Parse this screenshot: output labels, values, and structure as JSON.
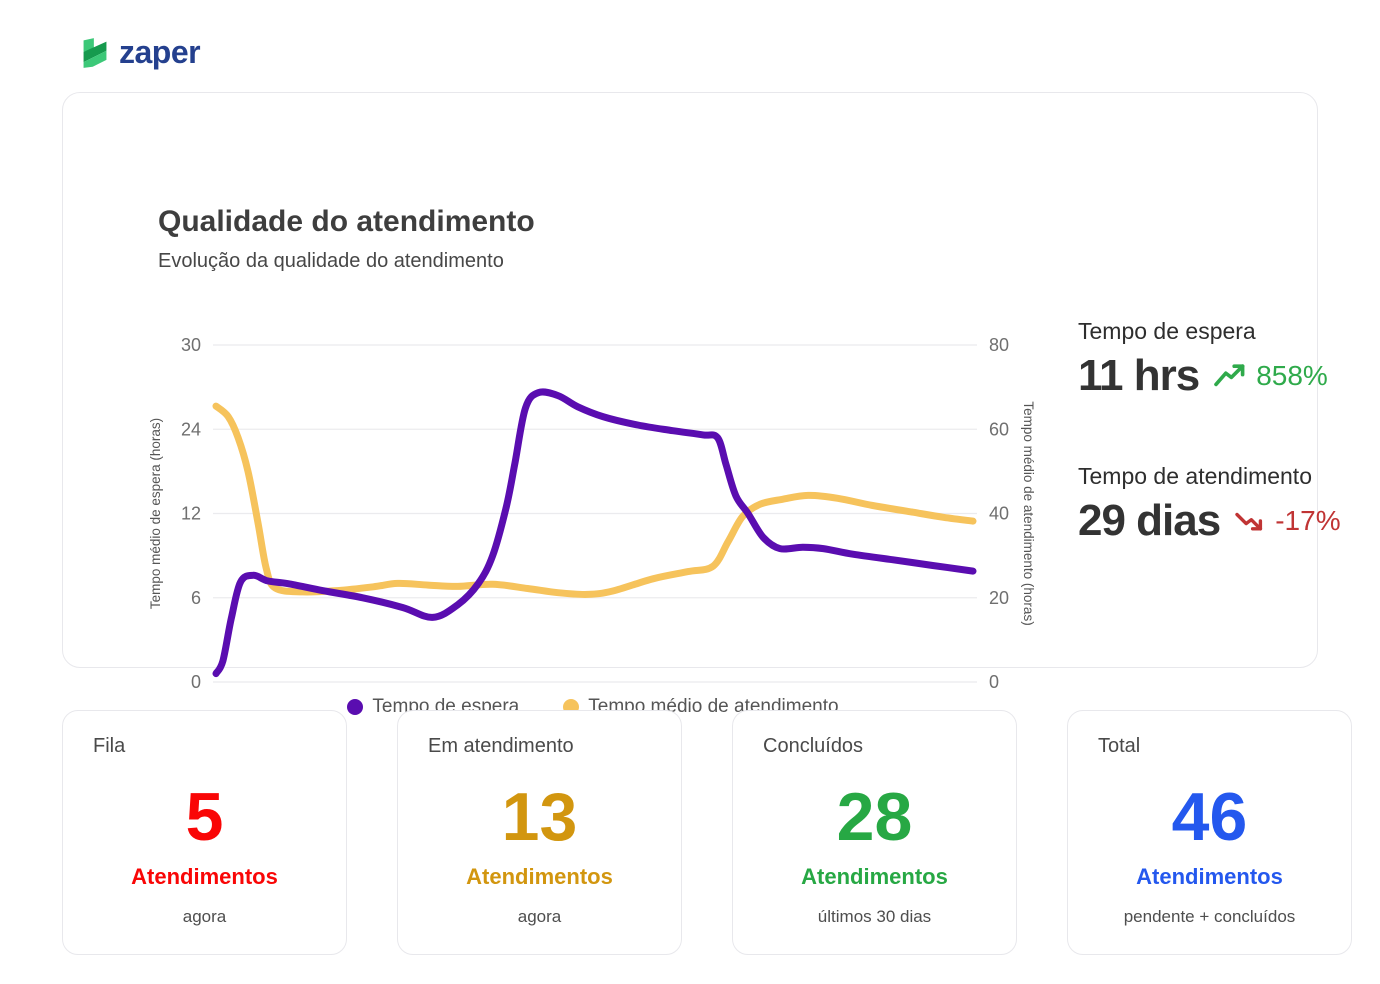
{
  "brand": {
    "name": "zaper",
    "text_color": "#24408e",
    "icon_green_dark": "#169a4e",
    "icon_green_light": "#3cc878"
  },
  "panel": {
    "title": "Qualidade do atendimento",
    "subtitle": "Evolução da qualidade do atendimento"
  },
  "chart_data": {
    "type": "line",
    "title": "Qualidade do atendimento",
    "grid": true,
    "legend_position": "bottom",
    "x_tick_labels": [],
    "left_axis": {
      "label": "Tempo médio de espera (horas)",
      "ticks": [
        0,
        6,
        12,
        24,
        30
      ]
    },
    "right_axis": {
      "label": "Tempo médio de atendimento (horas)",
      "ticks": [
        0,
        20,
        40,
        60,
        80
      ]
    },
    "series": [
      {
        "name": "Tempo de espera",
        "axis": "left",
        "color": "#5a0db0",
        "points": [
          [
            0.4,
            0.6
          ],
          [
            1.3,
            1.5
          ],
          [
            2.4,
            4.5
          ],
          [
            3.6,
            7.1
          ],
          [
            5.3,
            7.6
          ],
          [
            7.2,
            7.2
          ],
          [
            9.9,
            7.0
          ],
          [
            14.5,
            6.5
          ],
          [
            19.7,
            6.0
          ],
          [
            25.0,
            5.3
          ],
          [
            28.9,
            4.6
          ],
          [
            32.2,
            5.5
          ],
          [
            34.9,
            7.0
          ],
          [
            36.8,
            9.0
          ],
          [
            38.6,
            13.0
          ],
          [
            39.7,
            19.0
          ],
          [
            41.1,
            25.5
          ],
          [
            42.8,
            26.6
          ],
          [
            45.4,
            26.4
          ],
          [
            48.0,
            25.6
          ],
          [
            51.3,
            24.9
          ],
          [
            55.9,
            24.3
          ],
          [
            60.5,
            23.8
          ],
          [
            64.5,
            23.2
          ],
          [
            66.4,
            22.8
          ],
          [
            67.5,
            19.0
          ],
          [
            68.8,
            14.5
          ],
          [
            70.4,
            12.0
          ],
          [
            72.4,
            10.3
          ],
          [
            74.6,
            9.5
          ],
          [
            77.6,
            9.6
          ],
          [
            80.3,
            9.5
          ],
          [
            84.2,
            9.1
          ],
          [
            89.5,
            8.7
          ],
          [
            94.7,
            8.3
          ],
          [
            100,
            7.9
          ]
        ]
      },
      {
        "name": "Tempo médio de atendimento",
        "axis": "right",
        "color": "#f6c35c",
        "points": [
          [
            0.4,
            65.5
          ],
          [
            2.0,
            63
          ],
          [
            3.3,
            58
          ],
          [
            4.6,
            50
          ],
          [
            5.9,
            38
          ],
          [
            7.0,
            27
          ],
          [
            8.2,
            22.3
          ],
          [
            11.8,
            21.4
          ],
          [
            16.4,
            21.7
          ],
          [
            21.1,
            22.6
          ],
          [
            24.3,
            23.4
          ],
          [
            28.3,
            23.0
          ],
          [
            32.2,
            22.7
          ],
          [
            36.8,
            23.2
          ],
          [
            41.4,
            22.2
          ],
          [
            45.4,
            21.2
          ],
          [
            49.3,
            20.8
          ],
          [
            52.6,
            21.6
          ],
          [
            57.9,
            24.5
          ],
          [
            62.5,
            26.2
          ],
          [
            65.8,
            27.5
          ],
          [
            67.8,
            33.4
          ],
          [
            69.7,
            39.3
          ],
          [
            72.0,
            42.2
          ],
          [
            75.0,
            43.4
          ],
          [
            78.3,
            44.3
          ],
          [
            82.2,
            43.6
          ],
          [
            86.8,
            41.9
          ],
          [
            92.1,
            40.3
          ],
          [
            96.1,
            39.1
          ],
          [
            100,
            38.2
          ]
        ]
      }
    ]
  },
  "stats": [
    {
      "label": "Tempo de espera",
      "value": "11 hrs",
      "trend": "up",
      "trend_value": "858%",
      "trend_color": "#2faa4b"
    },
    {
      "label": "Tempo de atendimento",
      "value": "29 dias",
      "trend": "down",
      "trend_value": "-17%",
      "trend_color": "#c03434"
    }
  ],
  "cards": [
    {
      "title": "Fila",
      "value": "5",
      "unit": "Atendimentos",
      "caption": "agora",
      "color": "#f90606"
    },
    {
      "title": "Em atendimento",
      "value": "13",
      "unit": "Atendimentos",
      "caption": "agora",
      "color": "#d2960f"
    },
    {
      "title": "Concluídos",
      "value": "28",
      "unit": "Atendimentos",
      "caption": "últimos 30 dias",
      "color": "#27a844"
    },
    {
      "title": "Total",
      "value": "46",
      "unit": "Atendimentos",
      "caption": "pendente + concluídos",
      "color": "#2458ee"
    }
  ]
}
